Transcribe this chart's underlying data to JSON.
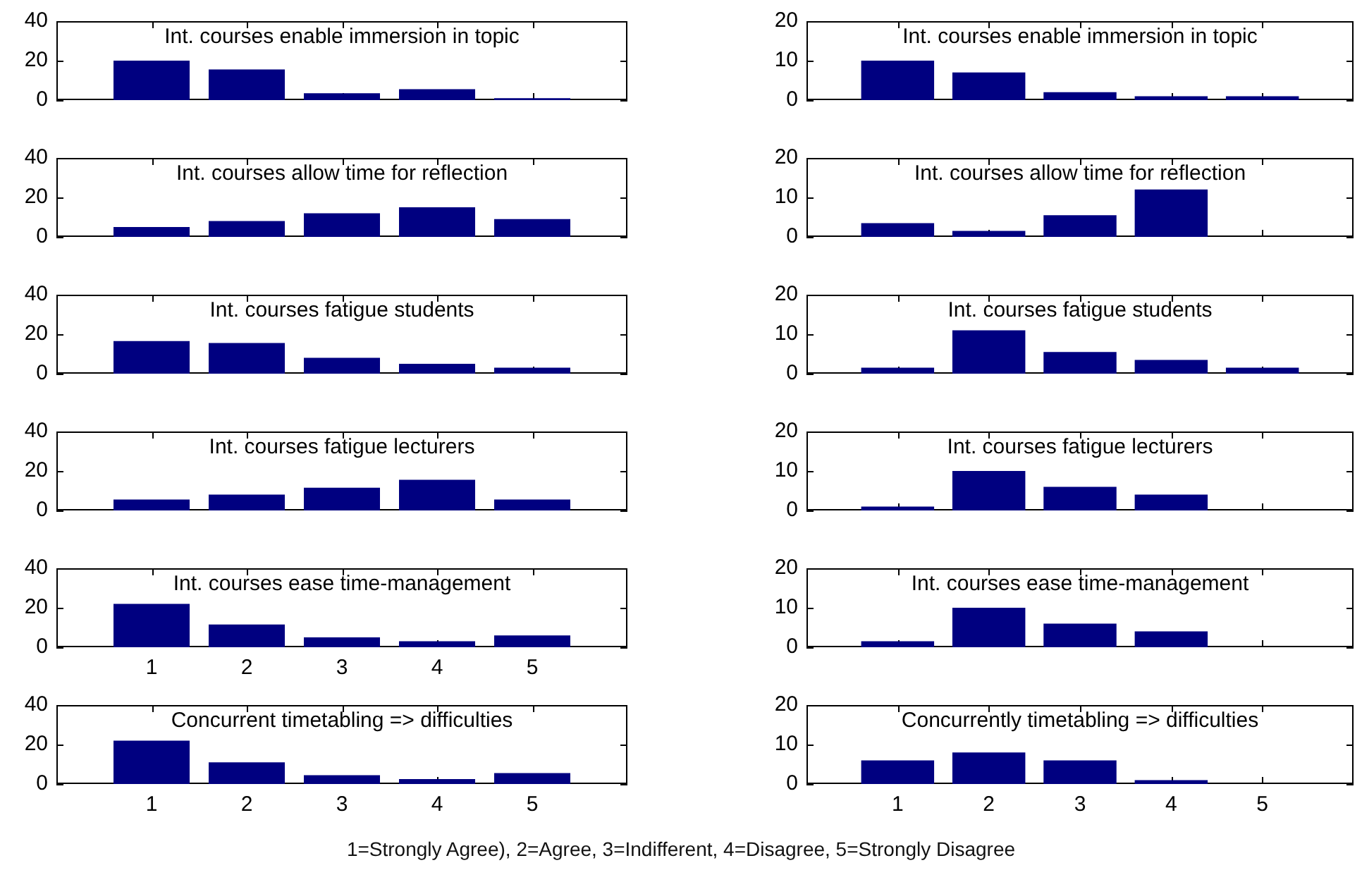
{
  "chart_data": [
    {
      "type": "bar",
      "title": "Int. courses enable immersion in topic",
      "x": [
        1,
        2,
        3,
        4,
        5
      ],
      "values": [
        20,
        15.5,
        3.5,
        5.5,
        1
      ],
      "color": "#000080",
      "xlim": [
        0,
        6
      ],
      "xticks": [
        1,
        2,
        3,
        4,
        5
      ],
      "ylim": [
        0,
        40
      ],
      "yticks": [
        0,
        20,
        40
      ],
      "tick_labels": "y",
      "grid": false,
      "legend": false
    },
    {
      "type": "bar",
      "title": "Int. courses enable immersion in topic",
      "x": [
        1,
        2,
        3,
        4,
        5
      ],
      "values": [
        10,
        7,
        2,
        1,
        1
      ],
      "color": "#000080",
      "xlim": [
        0,
        6
      ],
      "xticks": [
        1,
        2,
        3,
        4,
        5
      ],
      "ylim": [
        0,
        20
      ],
      "yticks": [
        0,
        10,
        20
      ],
      "tick_labels": "y",
      "grid": false,
      "legend": false
    },
    {
      "type": "bar",
      "title": "Int. courses allow time for reflection",
      "x": [
        1,
        2,
        3,
        4,
        5
      ],
      "values": [
        5,
        8,
        12,
        15,
        9
      ],
      "color": "#000080",
      "xlim": [
        0,
        6
      ],
      "xticks": [
        1,
        2,
        3,
        4,
        5
      ],
      "ylim": [
        0,
        40
      ],
      "yticks": [
        0,
        20,
        40
      ],
      "tick_labels": "y",
      "grid": false,
      "legend": false
    },
    {
      "type": "bar",
      "title": "Int. courses allow time for reflection",
      "x": [
        1,
        2,
        3,
        4,
        5
      ],
      "values": [
        3.5,
        1.5,
        5.5,
        12,
        0
      ],
      "color": "#000080",
      "xlim": [
        0,
        6
      ],
      "xticks": [
        1,
        2,
        3,
        4,
        5
      ],
      "ylim": [
        0,
        20
      ],
      "yticks": [
        0,
        10,
        20
      ],
      "tick_labels": "y",
      "grid": false,
      "legend": false
    },
    {
      "type": "bar",
      "title": "Int. courses fatigue students",
      "x": [
        1,
        2,
        3,
        4,
        5
      ],
      "values": [
        16.5,
        15.5,
        8,
        5,
        3
      ],
      "color": "#000080",
      "xlim": [
        0,
        6
      ],
      "xticks": [
        1,
        2,
        3,
        4,
        5
      ],
      "ylim": [
        0,
        40
      ],
      "yticks": [
        0,
        20,
        40
      ],
      "tick_labels": "y",
      "grid": false,
      "legend": false
    },
    {
      "type": "bar",
      "title": "Int. courses fatigue students",
      "x": [
        1,
        2,
        3,
        4,
        5
      ],
      "values": [
        1.5,
        11,
        5.5,
        3.5,
        1.5
      ],
      "color": "#000080",
      "xlim": [
        0,
        6
      ],
      "xticks": [
        1,
        2,
        3,
        4,
        5
      ],
      "ylim": [
        0,
        20
      ],
      "yticks": [
        0,
        10,
        20
      ],
      "tick_labels": "y",
      "grid": false,
      "legend": false
    },
    {
      "type": "bar",
      "title": "Int. courses fatigue lecturers",
      "x": [
        1,
        2,
        3,
        4,
        5
      ],
      "values": [
        5.5,
        8,
        11.5,
        15.5,
        5.5
      ],
      "color": "#000080",
      "xlim": [
        0,
        6
      ],
      "xticks": [
        1,
        2,
        3,
        4,
        5
      ],
      "ylim": [
        0,
        40
      ],
      "yticks": [
        0,
        20,
        40
      ],
      "tick_labels": "y",
      "grid": false,
      "legend": false
    },
    {
      "type": "bar",
      "title": "Int. courses fatigue lecturers",
      "x": [
        1,
        2,
        3,
        4,
        5
      ],
      "values": [
        1,
        10,
        6,
        4,
        0
      ],
      "color": "#000080",
      "xlim": [
        0,
        6
      ],
      "xticks": [
        1,
        2,
        3,
        4,
        5
      ],
      "ylim": [
        0,
        20
      ],
      "yticks": [
        0,
        10,
        20
      ],
      "tick_labels": "y",
      "grid": false,
      "legend": false
    },
    {
      "type": "bar",
      "title": "Int. courses ease time-management",
      "x": [
        1,
        2,
        3,
        4,
        5
      ],
      "values": [
        22,
        11.5,
        5,
        3,
        6
      ],
      "color": "#000080",
      "xlim": [
        0,
        6
      ],
      "xticks": [
        1,
        2,
        3,
        4,
        5
      ],
      "ylim": [
        0,
        40
      ],
      "yticks": [
        0,
        20,
        40
      ],
      "grid": false,
      "legend": false
    },
    {
      "type": "bar",
      "title": "Int. courses ease time-management",
      "x": [
        1,
        2,
        3,
        4,
        5
      ],
      "values": [
        1.5,
        10,
        6,
        4,
        0
      ],
      "color": "#000080",
      "xlim": [
        0,
        6
      ],
      "xticks": [
        1,
        2,
        3,
        4,
        5
      ],
      "ylim": [
        0,
        20
      ],
      "yticks": [
        0,
        10,
        20
      ],
      "tick_labels": "y",
      "grid": false,
      "legend": false
    },
    {
      "type": "bar",
      "title": "Concurrent timetabling => difficulties",
      "x": [
        1,
        2,
        3,
        4,
        5
      ],
      "values": [
        22,
        11,
        4.5,
        2.5,
        5.5
      ],
      "color": "#000080",
      "xlim": [
        0,
        6
      ],
      "xticks": [
        1,
        2,
        3,
        4,
        5
      ],
      "ylim": [
        0,
        40
      ],
      "yticks": [
        0,
        20,
        40
      ],
      "grid": false,
      "legend": false
    },
    {
      "type": "bar",
      "title": "Concurrently timetabling => difficulties",
      "x": [
        1,
        2,
        3,
        4,
        5
      ],
      "values": [
        6,
        8,
        6,
        1,
        0
      ],
      "color": "#000080",
      "xlim": [
        0,
        6
      ],
      "xticks": [
        1,
        2,
        3,
        4,
        5
      ],
      "ylim": [
        0,
        20
      ],
      "yticks": [
        0,
        10,
        20
      ],
      "grid": false,
      "legend": false,
      "annotations": [
        "1=Strongly Agree), 2=Agree, 3=Indifferent, 4=Disagree, 5=Strongly Disagree"
      ]
    }
  ]
}
